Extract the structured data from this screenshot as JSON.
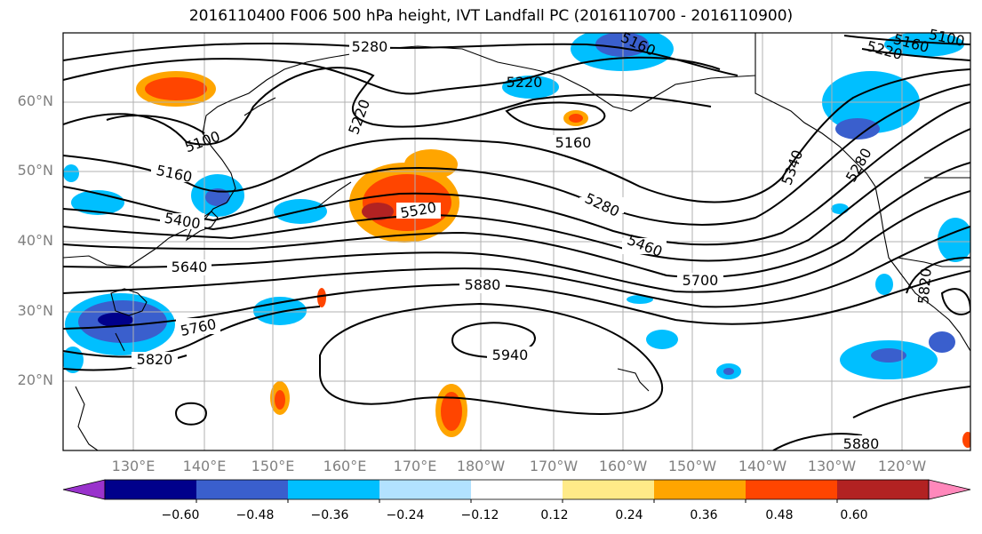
{
  "title": "2016110400 F006 500 hPa height, IVT Landfall PC (2016110700 - 2016110900)",
  "lat_labels": [
    "60°N",
    "50°N",
    "40°N",
    "30°N",
    "20°N"
  ],
  "lon_labels": [
    "130°E",
    "140°E",
    "150°E",
    "160°E",
    "170°E",
    "180°W",
    "170°W",
    "160°W",
    "150°W",
    "140°W",
    "130°W",
    "120°W"
  ],
  "contour_labels": [
    "5280",
    "5220",
    "5160",
    "5100",
    "5160",
    "5220",
    "5160",
    "5400",
    "5520",
    "5280",
    "5460",
    "5640",
    "5700",
    "5880",
    "5760",
    "5820",
    "5940",
    "5880",
    "5340",
    "5280",
    "5820",
    "5100",
    "5160",
    "5220"
  ],
  "colorbar": {
    "ticks": [
      "−0.60",
      "−0.48",
      "−0.36",
      "−0.24",
      "−0.12",
      "0.12",
      "0.24",
      "0.36",
      "0.48",
      "0.60"
    ],
    "colors": [
      "#9932cc",
      "#00008b",
      "#3a5fcd",
      "#00bfff",
      "#b2e2ff",
      "#ffffff",
      "#ffea88",
      "#ffa500",
      "#ff4500",
      "#b22222",
      "#ff88bb"
    ]
  }
}
